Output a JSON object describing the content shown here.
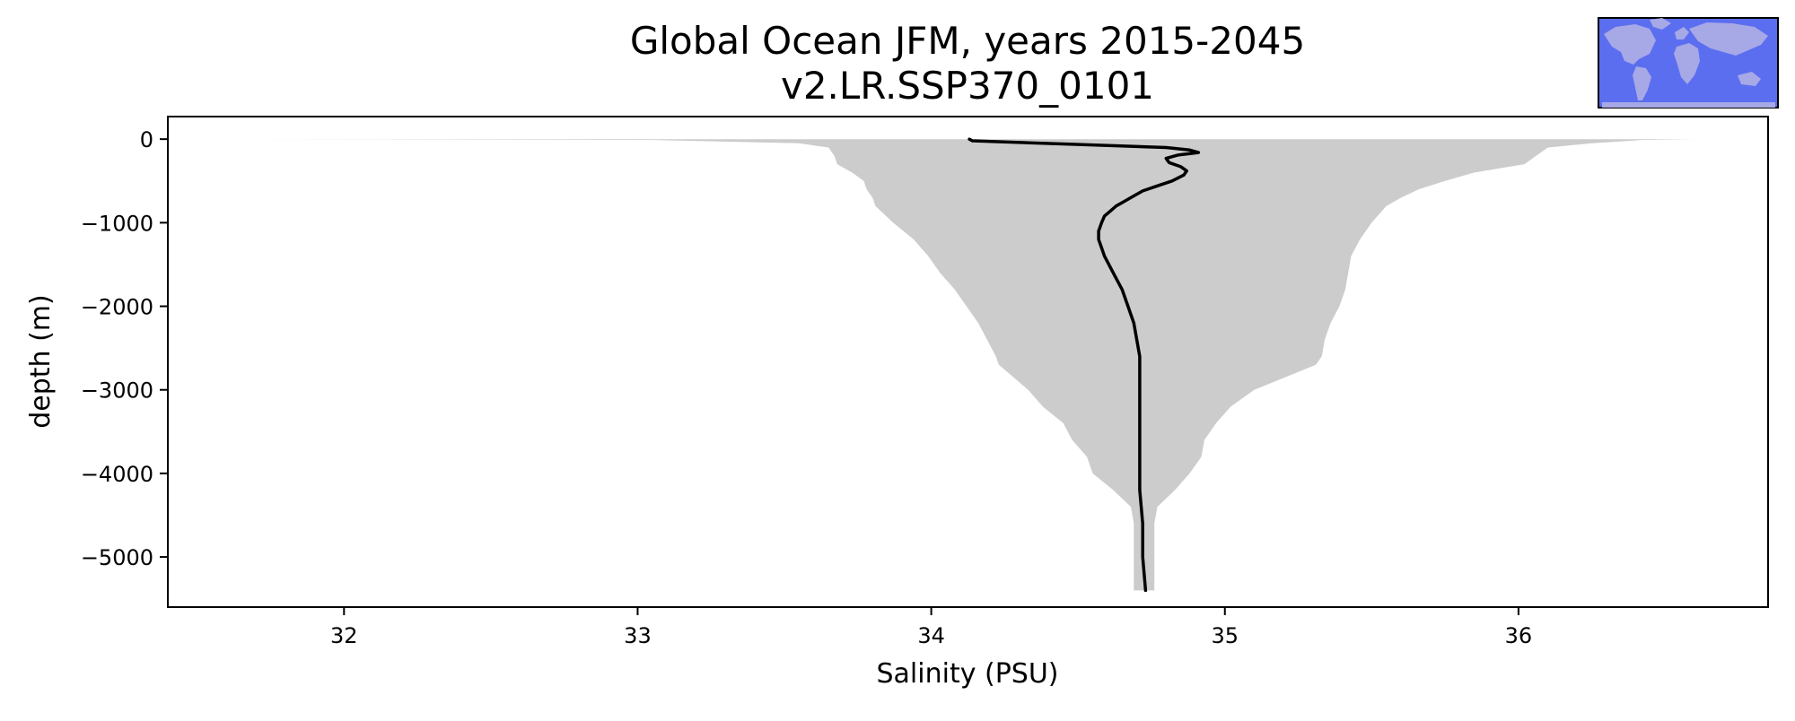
{
  "chart_data": {
    "type": "area",
    "title": "Global Ocean JFM, years 2015-2045",
    "subtitle": "v2.LR.SSP370_0101",
    "xlabel": "Salinity (PSU)",
    "ylabel": "depth (m)",
    "xlim": [
      31.4,
      36.85
    ],
    "ylim": [
      -5600,
      270
    ],
    "xticks": [
      32,
      33,
      34,
      35,
      36
    ],
    "yticks": [
      0,
      -1000,
      -2000,
      -3000,
      -4000,
      -5000
    ],
    "grid": false,
    "legend": "none",
    "colors": {
      "envelope": "#cccccc",
      "mean_line": "#000000",
      "inset_ocean": "#5b6ef0",
      "inset_land": "#a7a8e6"
    },
    "series": [
      {
        "kind": "envelope",
        "depth": [
          0,
          -10,
          -50,
          -100,
          -200,
          -300,
          -400,
          -500,
          -600,
          -700,
          -800,
          -1000,
          -1200,
          -1400,
          -1600,
          -1800,
          -2000,
          -2200,
          -2400,
          -2600,
          -2700,
          -3000,
          -3200,
          -3400,
          -3600,
          -3800,
          -4000,
          -4200,
          -4400,
          -4600,
          -4800,
          -5000,
          -5200,
          -5400
        ],
        "min": [
          31.65,
          33.05,
          33.55,
          33.65,
          33.67,
          33.68,
          33.73,
          33.77,
          33.78,
          33.8,
          33.81,
          33.87,
          33.94,
          33.99,
          34.03,
          34.08,
          34.12,
          34.16,
          34.19,
          34.22,
          34.23,
          34.33,
          34.38,
          34.45,
          34.48,
          34.53,
          34.55,
          34.62,
          34.68,
          34.69,
          34.69,
          34.69,
          34.69,
          34.69
        ],
        "max": [
          36.6,
          36.42,
          36.25,
          36.1,
          36.06,
          36.02,
          35.85,
          35.75,
          35.66,
          35.6,
          35.55,
          35.5,
          35.46,
          35.43,
          35.42,
          35.41,
          35.39,
          35.36,
          35.34,
          35.33,
          35.31,
          35.1,
          35.02,
          34.97,
          34.93,
          34.92,
          34.88,
          34.83,
          34.77,
          34.76,
          34.76,
          34.76,
          34.76,
          34.76
        ]
      },
      {
        "kind": "mean",
        "depth": [
          0,
          -20,
          -60,
          -100,
          -130,
          -160,
          -190,
          -230,
          -280,
          -330,
          -380,
          -430,
          -500,
          -560,
          -620,
          -680,
          -740,
          -800,
          -860,
          -920,
          -1000,
          -1100,
          -1200,
          -1400,
          -1600,
          -1800,
          -2000,
          -2200,
          -2400,
          -2600,
          -2800,
          -3000,
          -3400,
          -3800,
          -4200,
          -4600,
          -5000,
          -5400
        ],
        "value": [
          34.13,
          34.14,
          34.47,
          34.8,
          34.88,
          34.91,
          34.84,
          34.8,
          34.81,
          34.85,
          34.87,
          34.86,
          34.82,
          34.77,
          34.72,
          34.69,
          34.66,
          34.63,
          34.61,
          34.59,
          34.58,
          34.57,
          34.57,
          34.59,
          34.62,
          34.65,
          34.67,
          34.69,
          34.7,
          34.71,
          34.71,
          34.71,
          34.71,
          34.71,
          34.71,
          34.72,
          34.72,
          34.73
        ]
      }
    ]
  }
}
